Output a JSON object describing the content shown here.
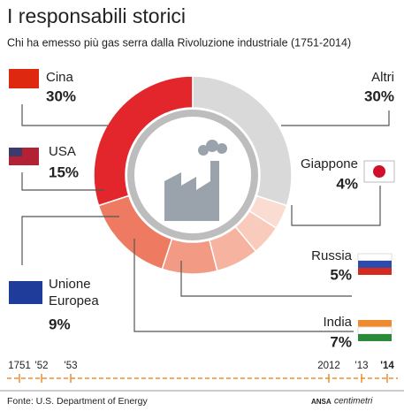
{
  "chart_data": {
    "type": "pie",
    "title": "I responsabili storici",
    "subtitle": "Chi ha emesso più gas serra dalla Rivoluzione industriale (1751-2014)",
    "categories": [
      "Cina",
      "USA",
      "Unione Europea",
      "India",
      "Russia",
      "Giappone",
      "Altri"
    ],
    "values": [
      30,
      15,
      9,
      7,
      5,
      4,
      30
    ],
    "value_labels": [
      "30%",
      "15%",
      "9%",
      "7%",
      "5%",
      "4%",
      "30%"
    ],
    "colors": [
      "#e3262b",
      "#ee7a62",
      "#f29a84",
      "#f5b3a0",
      "#f8cbbd",
      "#fadcd2",
      "#d9d9d9"
    ],
    "timeline": [
      "1751",
      "'52",
      "'53",
      "2012",
      "'13",
      "'14"
    ],
    "source": "Fonte: U.S. Department of Energy",
    "credit": [
      "ANSA",
      "centimetri"
    ]
  }
}
